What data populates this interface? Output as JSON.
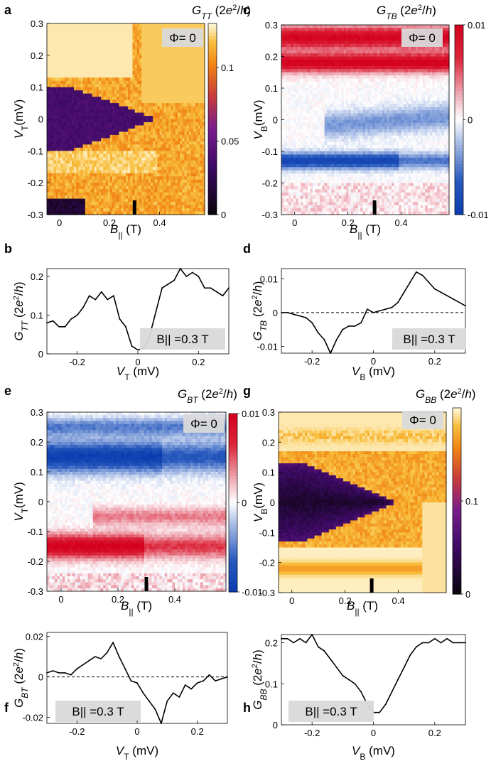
{
  "figure": {
    "panel_letters": [
      "a",
      "b",
      "c",
      "d",
      "e",
      "f",
      "g",
      "h"
    ],
    "x_unit_B": "(T)",
    "x_unit_V": "(mV)"
  },
  "chart_data": [
    {
      "panel": "a",
      "type": "heatmap",
      "colorbar_title": "G_TT (2e²/h)",
      "colormap": "inferno",
      "badge": "Φ= 0",
      "xlabel": "B|| (T)",
      "ylabel": "VT(mV)",
      "x_ticks": [
        "0",
        "0.2",
        "0.4"
      ],
      "x_tick_values": [
        0,
        0.2,
        0.4
      ],
      "y_ticks": [
        "0.3",
        "0.2",
        "0.1",
        "0",
        "-0.1",
        "-0.2",
        "-0.3"
      ],
      "y_tick_values": [
        0.3,
        0.2,
        0.1,
        0,
        -0.1,
        -0.2,
        -0.3
      ],
      "xlim": [
        -0.05,
        0.58
      ],
      "ylim": [
        -0.3,
        0.3
      ],
      "cbar_ticks": [
        "0.1",
        "0.05",
        "0"
      ],
      "cbar_tick_values": [
        0.1,
        0.05,
        0
      ],
      "cbar_range": [
        0,
        0.13
      ],
      "marker_x": 0.3
    },
    {
      "panel": "b",
      "type": "line",
      "xlabel": "VT (mV)",
      "ylabel": "G_TT (2e²/h)",
      "x_ticks": [
        "-0.2",
        "0",
        "0.2"
      ],
      "x_tick_values": [
        -0.2,
        0,
        0.2
      ],
      "y_ticks": [
        "0.2",
        "0.1",
        "0"
      ],
      "y_tick_values": [
        0.2,
        0.1,
        0
      ],
      "xlim": [
        -0.3,
        0.3
      ],
      "ylim": [
        0,
        0.22
      ],
      "badge": "B|| =0.3 T",
      "x": [
        -0.3,
        -0.28,
        -0.26,
        -0.24,
        -0.22,
        -0.2,
        -0.18,
        -0.16,
        -0.14,
        -0.12,
        -0.1,
        -0.08,
        -0.06,
        -0.04,
        -0.02,
        0,
        0.02,
        0.04,
        0.06,
        0.08,
        0.1,
        0.12,
        0.14,
        0.16,
        0.18,
        0.2,
        0.22,
        0.24,
        0.26,
        0.28,
        0.3
      ],
      "y": [
        0.08,
        0.085,
        0.07,
        0.07,
        0.09,
        0.1,
        0.12,
        0.15,
        0.14,
        0.16,
        0.14,
        0.15,
        0.09,
        0.07,
        0.02,
        0.01,
        0.015,
        0.05,
        0.11,
        0.17,
        0.18,
        0.19,
        0.22,
        0.2,
        0.21,
        0.2,
        0.17,
        0.17,
        0.16,
        0.15,
        0.17
      ]
    },
    {
      "panel": "c",
      "type": "heatmap",
      "colorbar_title": "G_TB (2e²/h)",
      "colormap": "diverging red-white-blue",
      "badge": "Φ= 0",
      "xlabel": "B|| (T)",
      "ylabel": "VB(mV)",
      "x_ticks": [
        "0",
        "0.2",
        "0.4"
      ],
      "x_tick_values": [
        0,
        0.2,
        0.4
      ],
      "y_ticks": [
        "0.3",
        "0.2",
        "0.1",
        "0",
        "-0.1",
        "-0.2",
        "-0.3"
      ],
      "y_tick_values": [
        0.3,
        0.2,
        0.1,
        0,
        -0.1,
        -0.2,
        -0.3
      ],
      "xlim": [
        -0.05,
        0.58
      ],
      "ylim": [
        -0.3,
        0.3
      ],
      "cbar_ticks": [
        "0.01",
        "0",
        "-0.01"
      ],
      "cbar_tick_values": [
        0.01,
        0,
        -0.01
      ],
      "cbar_range": [
        -0.01,
        0.01
      ],
      "marker_x": 0.3
    },
    {
      "panel": "d",
      "type": "line",
      "xlabel": "VB(mV)",
      "ylabel": "G_TB (2e²/h)",
      "x_ticks": [
        "-0.2",
        "0",
        "0.2"
      ],
      "x_tick_values": [
        -0.2,
        0,
        0.2
      ],
      "y_ticks": [
        "0.01",
        "0",
        "-0.01"
      ],
      "y_tick_values": [
        0.01,
        0,
        -0.01
      ],
      "xlim": [
        -0.3,
        0.3
      ],
      "ylim": [
        -0.012,
        0.013
      ],
      "badge": "B|| =0.3 T",
      "reference_line": 0,
      "x": [
        -0.3,
        -0.28,
        -0.26,
        -0.24,
        -0.22,
        -0.2,
        -0.18,
        -0.16,
        -0.14,
        -0.12,
        -0.1,
        -0.08,
        -0.06,
        -0.04,
        -0.02,
        0,
        0.02,
        0.04,
        0.06,
        0.08,
        0.1,
        0.12,
        0.14,
        0.16,
        0.18,
        0.2,
        0.22,
        0.24,
        0.26,
        0.28,
        0.3
      ],
      "y": [
        0,
        0,
        -0.0005,
        -0.001,
        -0.0015,
        -0.003,
        -0.006,
        -0.008,
        -0.012,
        -0.008,
        -0.005,
        -0.004,
        -0.004,
        -0.003,
        0.001,
        0,
        0.0005,
        0.001,
        0.0015,
        0.003,
        0.006,
        0.009,
        0.012,
        0.011,
        0.009,
        0.007,
        0.006,
        0.005,
        0.004,
        0.003,
        0.002
      ]
    },
    {
      "panel": "e",
      "type": "heatmap",
      "colorbar_title": "G_BT (2e²/h)",
      "colormap": "diverging red-white-blue",
      "badge": "Φ= 0",
      "xlabel": "B|| (T)",
      "ylabel": "VT(mV)",
      "x_ticks": [
        "0",
        "0.2",
        "0.4"
      ],
      "x_tick_values": [
        0,
        0.2,
        0.4
      ],
      "y_ticks": [
        "0.3",
        "0.2",
        "0.1",
        "0",
        "-0.1",
        "-0.2",
        "-0.3"
      ],
      "y_tick_values": [
        0.3,
        0.2,
        0.1,
        0,
        -0.1,
        -0.2,
        -0.3
      ],
      "xlim": [
        -0.05,
        0.58
      ],
      "ylim": [
        -0.3,
        0.3
      ],
      "cbar_ticks": [
        "0.01",
        "0",
        "-0.01"
      ],
      "cbar_tick_values": [
        0.01,
        0,
        -0.01
      ],
      "cbar_range": [
        -0.01,
        0.01
      ],
      "marker_x": 0.3
    },
    {
      "panel": "f",
      "type": "line",
      "xlabel": "VT (mV)",
      "ylabel": "G_BT (2e²/h)",
      "x_ticks": [
        "-0.2",
        "0",
        "0.2"
      ],
      "x_tick_values": [
        -0.2,
        0,
        0.2
      ],
      "y_ticks": [
        "0.02",
        "0",
        "-0.02"
      ],
      "y_tick_values": [
        0.02,
        0,
        -0.02
      ],
      "xlim": [
        -0.3,
        0.3
      ],
      "ylim": [
        -0.023,
        0.022
      ],
      "badge": "B|| =0.3 T",
      "reference_line": 0,
      "x": [
        -0.3,
        -0.28,
        -0.26,
        -0.24,
        -0.22,
        -0.2,
        -0.18,
        -0.16,
        -0.14,
        -0.12,
        -0.1,
        -0.08,
        -0.06,
        -0.04,
        -0.02,
        0,
        0.02,
        0.04,
        0.06,
        0.08,
        0.1,
        0.12,
        0.14,
        0.16,
        0.18,
        0.2,
        0.22,
        0.24,
        0.26,
        0.28,
        0.3
      ],
      "y": [
        0.002,
        0.003,
        0.002,
        0.002,
        0.001,
        0.004,
        0.006,
        0.008,
        0.01,
        0.009,
        0.012,
        0.017,
        0.01,
        0.004,
        -0.002,
        -0.003,
        -0.008,
        -0.012,
        -0.016,
        -0.023,
        -0.012,
        -0.008,
        -0.01,
        -0.004,
        -0.006,
        -0.003,
        -0.002,
        0.001,
        -0.002,
        -0.001,
        0
      ]
    },
    {
      "panel": "g",
      "type": "heatmap",
      "colorbar_title": "G_BB (2e²/h)",
      "colormap": "inferno",
      "badge": "Φ= 0",
      "xlabel": "B|| (T)",
      "ylabel": "VB(mV)",
      "x_ticks": [
        "0",
        "0.2",
        "0.4"
      ],
      "x_tick_values": [
        0,
        0.2,
        0.4
      ],
      "y_ticks": [
        "0.3",
        "0.2",
        "0.1",
        "0",
        "-0.1",
        "-0.2",
        "-0.3"
      ],
      "y_tick_values": [
        0.3,
        0.2,
        0.1,
        0,
        -0.1,
        -0.2,
        -0.3
      ],
      "xlim": [
        -0.05,
        0.58
      ],
      "ylim": [
        -0.3,
        0.3
      ],
      "cbar_ticks": [
        "0.1",
        "0"
      ],
      "cbar_tick_values": [
        0.1,
        0
      ],
      "cbar_range": [
        0,
        0.2
      ],
      "marker_x": 0.3
    },
    {
      "panel": "h",
      "type": "line",
      "xlabel": "VB(mV)",
      "ylabel": "G_BB (2e²/h)",
      "x_ticks": [
        "-0.2",
        "0",
        "0.2"
      ],
      "x_tick_values": [
        -0.2,
        0,
        0.2
      ],
      "y_ticks": [
        "0.2",
        "0.1",
        "0"
      ],
      "y_tick_values": [
        0.2,
        0.1,
        0
      ],
      "xlim": [
        -0.3,
        0.3
      ],
      "ylim": [
        0,
        0.22
      ],
      "badge": "B|| =0.3 T",
      "x": [
        -0.3,
        -0.28,
        -0.26,
        -0.24,
        -0.22,
        -0.2,
        -0.18,
        -0.16,
        -0.14,
        -0.12,
        -0.1,
        -0.08,
        -0.06,
        -0.04,
        -0.02,
        0,
        0.02,
        0.04,
        0.06,
        0.08,
        0.1,
        0.12,
        0.14,
        0.16,
        0.18,
        0.2,
        0.22,
        0.24,
        0.26,
        0.28,
        0.3
      ],
      "y": [
        0.21,
        0.21,
        0.2,
        0.21,
        0.2,
        0.22,
        0.19,
        0.18,
        0.16,
        0.14,
        0.12,
        0.11,
        0.1,
        0.08,
        0.05,
        0.03,
        0.03,
        0.05,
        0.08,
        0.11,
        0.14,
        0.17,
        0.19,
        0.2,
        0.2,
        0.21,
        0.2,
        0.21,
        0.2,
        0.2,
        0.2
      ]
    }
  ]
}
